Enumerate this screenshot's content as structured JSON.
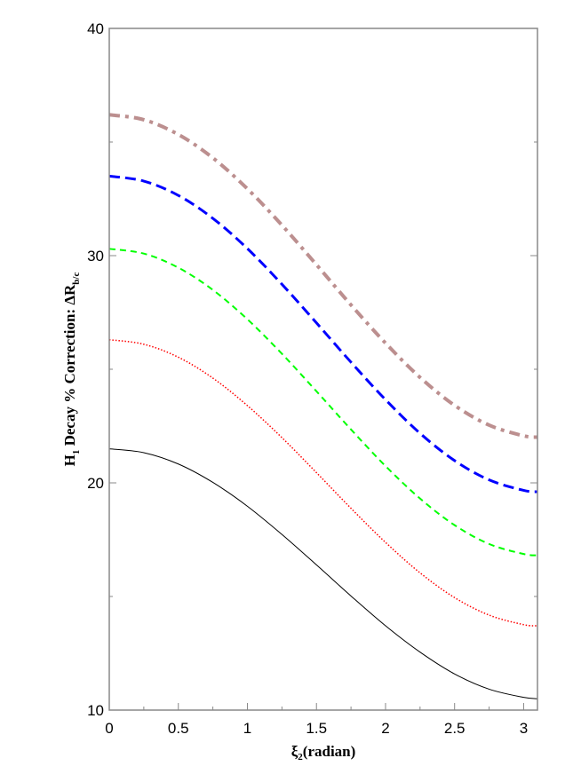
{
  "chart_data": {
    "type": "line",
    "title": "",
    "xlabel": "ξ2(radian)",
    "xlabel_main": "ξ",
    "xlabel_sub": "2",
    "xlabel_rest": "(radian)",
    "ylabel_parts": {
      "h": "H",
      "h_sub": "1",
      "rest": " Decay % Correction:  ΔR",
      "r_sub": "b/c"
    },
    "xlim": [
      0,
      3.1
    ],
    "ylim": [
      10,
      40
    ],
    "xticks": [
      "0",
      "0.5",
      "1",
      "1.5",
      "2",
      "2.5",
      "3"
    ],
    "xtick_values": [
      0,
      0.5,
      1,
      1.5,
      2,
      2.5,
      3
    ],
    "yticks": [
      "10",
      "20",
      "30",
      "40"
    ],
    "ytick_values": [
      10,
      20,
      30,
      40
    ],
    "grid": false,
    "x": [
      0,
      0.25,
      0.5,
      0.75,
      1,
      1.25,
      1.5,
      1.75,
      2,
      2.25,
      2.5,
      2.75,
      3,
      3.1
    ],
    "series": [
      {
        "color": "#000000",
        "style": "solid",
        "values": [
          21.5,
          21.33,
          20.83,
          20.02,
          18.97,
          17.73,
          16.39,
          15.02,
          13.71,
          12.55,
          11.59,
          10.92,
          10.56,
          10.5
        ]
      },
      {
        "color": "#ff0000",
        "style": "dotted",
        "values": [
          26.3,
          26.1,
          25.53,
          24.61,
          23.4,
          21.99,
          20.45,
          18.88,
          17.38,
          16.04,
          14.95,
          14.18,
          13.76,
          13.71
        ]
      },
      {
        "color": "#00ff00",
        "style": "dashed",
        "values": [
          30.3,
          30.09,
          29.47,
          28.49,
          27.2,
          25.68,
          24.03,
          22.35,
          20.74,
          19.31,
          18.14,
          17.31,
          16.87,
          16.81
        ]
      },
      {
        "color": "#0000ff",
        "style": "long-dashed",
        "values": [
          33.5,
          33.28,
          32.65,
          31.64,
          30.31,
          28.74,
          27.04,
          25.31,
          23.66,
          22.18,
          20.98,
          20.13,
          19.67,
          19.61
        ]
      },
      {
        "color": "#bc8f8f",
        "style": "dash-dot",
        "values": [
          36.2,
          35.98,
          35.33,
          34.3,
          32.94,
          31.34,
          29.6,
          27.83,
          26.15,
          24.64,
          23.41,
          22.54,
          22.07,
          22.01
        ]
      }
    ]
  }
}
